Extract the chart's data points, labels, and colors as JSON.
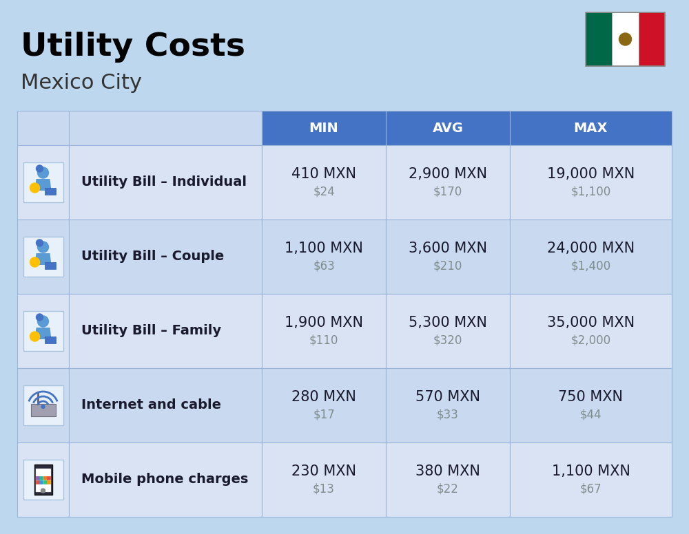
{
  "title": "Utility Costs",
  "subtitle": "Mexico City",
  "background_color": "#bdd7ee",
  "header_bg_color": "#4472c4",
  "header_text_color": "#ffffff",
  "row_bg_color_1": "#dae3f3",
  "row_bg_color_2": "#c9d9ef",
  "icon_col_bg": "#c9d9ef",
  "label_col_bg": "#c9d9ef",
  "cell_border_color": "#9ab5d9",
  "title_color": "#000000",
  "subtitle_color": "#333333",
  "mxn_color": "#1a1a2e",
  "usd_color": "#7f8c8d",
  "label_color": "#1a1a2e",
  "header_text_color_white": "#ffffff",
  "flag_green": "#006847",
  "flag_white": "#ffffff",
  "flag_red": "#ce1126",
  "title_fontsize": 34,
  "subtitle_fontsize": 22,
  "header_fontsize": 14,
  "label_fontsize": 14,
  "value_fontsize": 15,
  "usd_fontsize": 12,
  "rows": [
    {
      "label": "Utility Bill – Individual",
      "min_mxn": "410 MXN",
      "min_usd": "$24",
      "avg_mxn": "2,900 MXN",
      "avg_usd": "$170",
      "max_mxn": "19,000 MXN",
      "max_usd": "$1,100"
    },
    {
      "label": "Utility Bill – Couple",
      "min_mxn": "1,100 MXN",
      "min_usd": "$63",
      "avg_mxn": "3,600 MXN",
      "avg_usd": "$210",
      "max_mxn": "24,000 MXN",
      "max_usd": "$1,400"
    },
    {
      "label": "Utility Bill – Family",
      "min_mxn": "1,900 MXN",
      "min_usd": "$110",
      "avg_mxn": "5,300 MXN",
      "avg_usd": "$320",
      "max_mxn": "35,000 MXN",
      "max_usd": "$2,000"
    },
    {
      "label": "Internet and cable",
      "min_mxn": "280 MXN",
      "min_usd": "$17",
      "avg_mxn": "570 MXN",
      "avg_usd": "$33",
      "max_mxn": "750 MXN",
      "max_usd": "$44"
    },
    {
      "label": "Mobile phone charges",
      "min_mxn": "230 MXN",
      "min_usd": "$13",
      "avg_mxn": "380 MXN",
      "avg_usd": "$22",
      "max_mxn": "1,100 MXN",
      "max_usd": "$67"
    }
  ]
}
